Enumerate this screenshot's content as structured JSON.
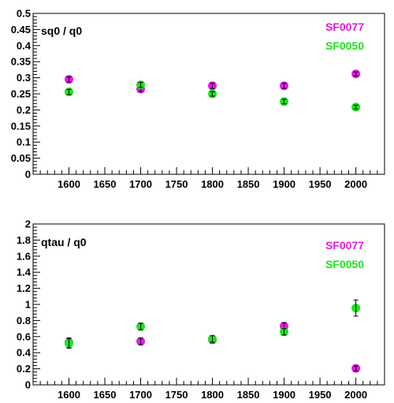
{
  "chart_data": [
    {
      "type": "scatter",
      "title": "sq0 / q0",
      "xlim": [
        1550,
        2040
      ],
      "ylim": [
        0,
        0.5
      ],
      "x_ticks": [
        1600,
        1650,
        1700,
        1750,
        1800,
        1850,
        1900,
        1950,
        2000
      ],
      "y_ticks": [
        0,
        0.05,
        0.1,
        0.15,
        0.2,
        0.25,
        0.3,
        0.35,
        0.4,
        0.45,
        0.5
      ],
      "grid": false,
      "legend_position": "top-right",
      "series": [
        {
          "name": "SF0077",
          "color": "#e619e6",
          "points": [
            {
              "x": 1600,
              "y": 0.295,
              "err": 0.008
            },
            {
              "x": 1700,
              "y": 0.265,
              "err": 0.008
            },
            {
              "x": 1800,
              "y": 0.275,
              "err": 0.008
            },
            {
              "x": 1900,
              "y": 0.275,
              "err": 0.008
            },
            {
              "x": 2000,
              "y": 0.312,
              "err": 0.006
            }
          ]
        },
        {
          "name": "SF0050",
          "color": "#19e619",
          "points": [
            {
              "x": 1600,
              "y": 0.256,
              "err": 0.008
            },
            {
              "x": 1700,
              "y": 0.278,
              "err": 0.008
            },
            {
              "x": 1800,
              "y": 0.25,
              "err": 0.007
            },
            {
              "x": 1900,
              "y": 0.226,
              "err": 0.007
            },
            {
              "x": 2000,
              "y": 0.209,
              "err": 0.006
            }
          ]
        }
      ]
    },
    {
      "type": "scatter",
      "title": "qtau / q0",
      "xlim": [
        1550,
        2040
      ],
      "ylim": [
        0,
        2
      ],
      "x_ticks": [
        1600,
        1650,
        1700,
        1750,
        1800,
        1850,
        1900,
        1950,
        2000
      ],
      "y_ticks": [
        0,
        0.2,
        0.4,
        0.6,
        0.8,
        1,
        1.2,
        1.4,
        1.6,
        1.8,
        2
      ],
      "grid": false,
      "legend_position": "top-right",
      "series": [
        {
          "name": "SF0077",
          "color": "#e619e6",
          "points": [
            {
              "x": 1600,
              "y": 0.525,
              "err": 0.06
            },
            {
              "x": 1700,
              "y": 0.54,
              "err": 0.04
            },
            {
              "x": 1800,
              "y": 0.56,
              "err": 0.04
            },
            {
              "x": 1900,
              "y": 0.73,
              "err": 0.04
            },
            {
              "x": 2000,
              "y": 0.205,
              "err": 0.03
            }
          ]
        },
        {
          "name": "SF0050",
          "color": "#19e619",
          "points": [
            {
              "x": 1600,
              "y": 0.515,
              "err": 0.06
            },
            {
              "x": 1700,
              "y": 0.725,
              "err": 0.04
            },
            {
              "x": 1800,
              "y": 0.57,
              "err": 0.04
            },
            {
              "x": 1900,
              "y": 0.66,
              "err": 0.04
            },
            {
              "x": 2000,
              "y": 0.955,
              "err": 0.1
            }
          ]
        }
      ]
    }
  ]
}
